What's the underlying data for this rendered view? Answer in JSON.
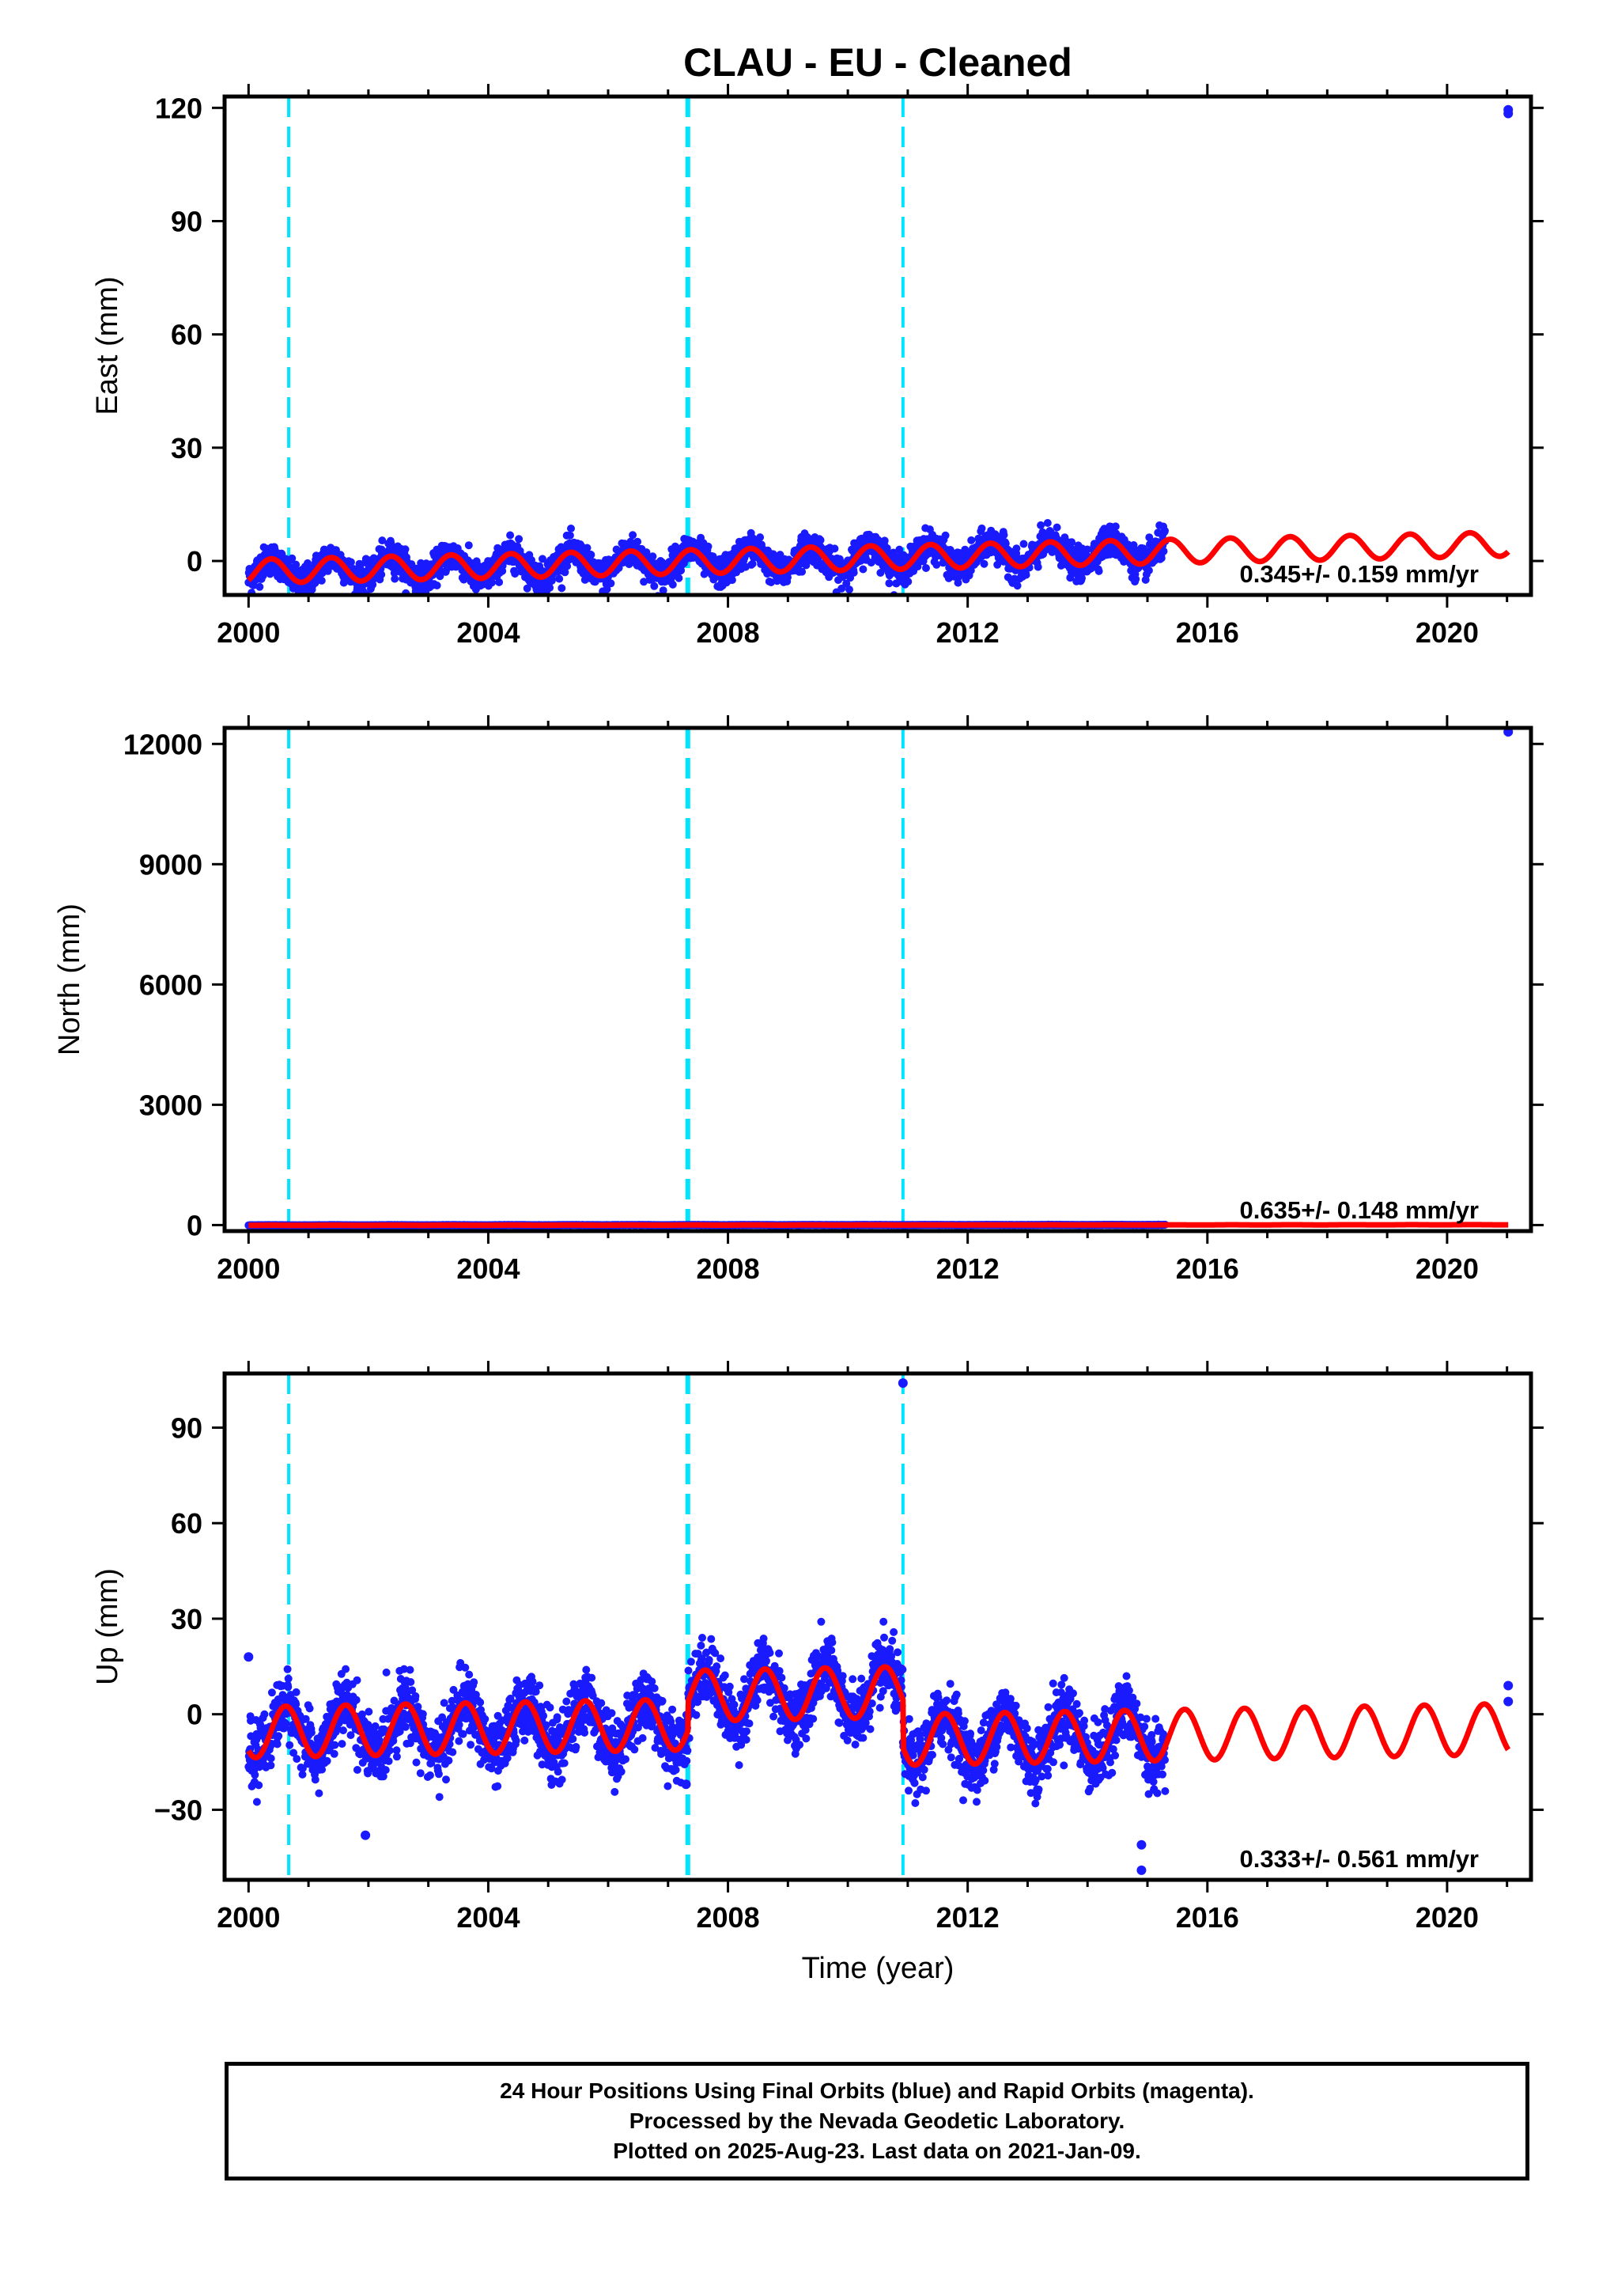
{
  "title": "CLAU  - EU - Cleaned",
  "footer": {
    "line1": "24 Hour Positions Using Final Orbits (blue) and Rapid Orbits (magenta).",
    "line2": "Processed by the Nevada Geodetic Laboratory.",
    "line3": "Plotted on 2025-Aug-23. Last data on 2021-Jan-09."
  },
  "colors": {
    "data": "#1a1aff",
    "model": "#ff0000",
    "offset": "#00e5ff",
    "frame": "#000000"
  },
  "offset_epochs": [
    2000.67,
    2007.33,
    2010.92
  ],
  "chart_data": [
    {
      "type": "scatter",
      "name": "east",
      "ylabel": "East (mm)",
      "xlabel": "",
      "xlim": [
        1999.6,
        2021.4
      ],
      "ylim": [
        -9,
        123
      ],
      "xticks": [
        2000,
        2004,
        2008,
        2012,
        2016,
        2020
      ],
      "yticks": [
        0,
        30,
        60,
        90,
        120
      ],
      "rate": "0.345+/- 0.159 mm/yr",
      "data_end": 2015.3,
      "model": {
        "offset": 0.0,
        "trend": 0.345,
        "amplitude": 3.2,
        "phase_peak": 0.38,
        "steps": [
          0,
          0,
          0
        ]
      },
      "noise": 2.0,
      "outliers": [
        [
          2021.02,
          118.5
        ],
        [
          2021.02,
          119.5
        ]
      ]
    },
    {
      "type": "scatter",
      "name": "north",
      "ylabel": "North (mm)",
      "xlabel": "",
      "xlim": [
        1999.6,
        2021.4
      ],
      "ylim": [
        -150,
        12400
      ],
      "xticks": [
        2000,
        2004,
        2008,
        2012,
        2016,
        2020
      ],
      "yticks": [
        0,
        3000,
        6000,
        9000,
        12000
      ],
      "rate": "0.635+/- 0.148 mm/yr",
      "data_end": 2015.3,
      "model": {
        "offset": 0.0,
        "trend": 0.635,
        "amplitude": 2.0,
        "phase_peak": 0.4,
        "steps": [
          0,
          0,
          0
        ]
      },
      "noise": 2.0,
      "outliers": [
        [
          2021.02,
          12300
        ]
      ]
    },
    {
      "type": "scatter",
      "name": "up",
      "ylabel": "Up (mm)",
      "xlabel": "Time (year)",
      "xlim": [
        1999.6,
        2021.4
      ],
      "ylim": [
        -52,
        107
      ],
      "xticks": [
        2000,
        2004,
        2008,
        2012,
        2016,
        2020
      ],
      "yticks": [
        -30,
        0,
        30,
        60,
        90
      ],
      "rate": "0.333+/- 0.561 mm/yr",
      "data_end": 2015.3,
      "model": {
        "offset": -3.0,
        "trend": 0.333,
        "amplitude": 8.0,
        "phase_peak": 0.62,
        "steps": [
          0,
          9,
          -15
        ]
      },
      "noise": 5.0,
      "outliers": [
        [
          2000.0,
          18
        ],
        [
          2010.92,
          104
        ],
        [
          2014.9,
          -41
        ],
        [
          2014.9,
          -49
        ],
        [
          2021.02,
          9
        ],
        [
          2021.02,
          4
        ],
        [
          2007.3,
          -22
        ],
        [
          2001.95,
          -38
        ]
      ]
    }
  ]
}
